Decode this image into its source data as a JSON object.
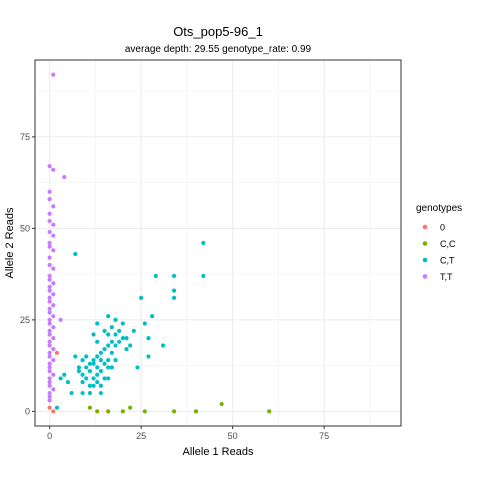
{
  "chart_data": {
    "type": "scatter",
    "title": "Ots_pop5-96_1",
    "subtitle": "average depth:  29.55  genotype_rate:  0.99",
    "xlabel": "Allele 1 Reads",
    "ylabel": "Allele 2 Reads",
    "xlim": [
      -4,
      96
    ],
    "ylim": [
      -4,
      96
    ],
    "xticks": [
      0,
      25,
      50,
      75
    ],
    "yticks": [
      0,
      25,
      50,
      75
    ],
    "grid": true,
    "legend_title": "genotypes",
    "legend_position": "right",
    "series": [
      {
        "name": "0",
        "color": "#F8766D",
        "points": [
          [
            0,
            1
          ],
          [
            1,
            0
          ],
          [
            2,
            16
          ]
        ]
      },
      {
        "name": "C,C",
        "color": "#7CAE00",
        "points": [
          [
            11,
            1
          ],
          [
            13,
            0
          ],
          [
            16,
            0
          ],
          [
            20,
            0
          ],
          [
            22,
            1
          ],
          [
            26,
            0
          ],
          [
            34,
            0
          ],
          [
            40,
            0
          ],
          [
            47,
            2
          ],
          [
            60,
            0
          ]
        ]
      },
      {
        "name": "C,T",
        "color": "#00BFC4",
        "points": [
          [
            2,
            1
          ],
          [
            3,
            9
          ],
          [
            4,
            10
          ],
          [
            5,
            8
          ],
          [
            6,
            5
          ],
          [
            7,
            43
          ],
          [
            7,
            15
          ],
          [
            8,
            12
          ],
          [
            8,
            11
          ],
          [
            9,
            14
          ],
          [
            9,
            10
          ],
          [
            9,
            8
          ],
          [
            9,
            5
          ],
          [
            10,
            15
          ],
          [
            10,
            12
          ],
          [
            10,
            9
          ],
          [
            11,
            13
          ],
          [
            11,
            11
          ],
          [
            11,
            7
          ],
          [
            11,
            5
          ],
          [
            12,
            21
          ],
          [
            12,
            14
          ],
          [
            12,
            13
          ],
          [
            12,
            9
          ],
          [
            12,
            7
          ],
          [
            13,
            24
          ],
          [
            13,
            19
          ],
          [
            13,
            15
          ],
          [
            13,
            12
          ],
          [
            13,
            10
          ],
          [
            13,
            8
          ],
          [
            14,
            16
          ],
          [
            14,
            14
          ],
          [
            14,
            11
          ],
          [
            14,
            7
          ],
          [
            14,
            5
          ],
          [
            15,
            22
          ],
          [
            15,
            17
          ],
          [
            15,
            13
          ],
          [
            15,
            9
          ],
          [
            16,
            26
          ],
          [
            16,
            21
          ],
          [
            16,
            18
          ],
          [
            16,
            14
          ],
          [
            16,
            12
          ],
          [
            16,
            9
          ],
          [
            17,
            23
          ],
          [
            17,
            19
          ],
          [
            17,
            16
          ],
          [
            17,
            12
          ],
          [
            18,
            25
          ],
          [
            18,
            21
          ],
          [
            18,
            18
          ],
          [
            18,
            14
          ],
          [
            19,
            22
          ],
          [
            19,
            19
          ],
          [
            20,
            24
          ],
          [
            20,
            20
          ],
          [
            21,
            20
          ],
          [
            21,
            17
          ],
          [
            22,
            18
          ],
          [
            23,
            22
          ],
          [
            24,
            12
          ],
          [
            25,
            31
          ],
          [
            26,
            24
          ],
          [
            27,
            15
          ],
          [
            27,
            20
          ],
          [
            28,
            26
          ],
          [
            29,
            37
          ],
          [
            31,
            18
          ],
          [
            34,
            37
          ],
          [
            34,
            31
          ],
          [
            34,
            33
          ],
          [
            42,
            46
          ],
          [
            42,
            37
          ]
        ]
      },
      {
        "name": "T,T",
        "color": "#C77CFF",
        "points": [
          [
            1,
            92
          ],
          [
            0,
            67
          ],
          [
            1,
            66
          ],
          [
            4,
            64
          ],
          [
            0,
            60
          ],
          [
            0,
            58
          ],
          [
            1,
            56
          ],
          [
            0,
            54
          ],
          [
            0,
            52
          ],
          [
            1,
            51
          ],
          [
            0,
            49
          ],
          [
            1,
            48
          ],
          [
            0,
            46
          ],
          [
            0,
            45
          ],
          [
            1,
            44
          ],
          [
            0,
            42
          ],
          [
            0,
            40
          ],
          [
            1,
            39
          ],
          [
            0,
            37
          ],
          [
            0,
            36
          ],
          [
            1,
            35
          ],
          [
            0,
            34
          ],
          [
            0,
            33
          ],
          [
            1,
            32
          ],
          [
            0,
            31
          ],
          [
            0,
            30
          ],
          [
            1,
            29
          ],
          [
            0,
            28
          ],
          [
            0,
            27
          ],
          [
            1,
            26
          ],
          [
            0,
            25
          ],
          [
            0,
            24
          ],
          [
            1,
            23
          ],
          [
            0,
            22
          ],
          [
            0,
            21
          ],
          [
            1,
            20
          ],
          [
            0,
            19
          ],
          [
            0,
            18
          ],
          [
            1,
            17
          ],
          [
            0,
            16
          ],
          [
            0,
            15
          ],
          [
            1,
            14
          ],
          [
            0,
            13
          ],
          [
            0,
            12
          ],
          [
            0,
            11
          ],
          [
            1,
            10
          ],
          [
            0,
            9
          ],
          [
            0,
            8
          ],
          [
            0,
            7
          ],
          [
            1,
            6
          ],
          [
            0,
            5
          ],
          [
            0,
            4
          ],
          [
            0,
            3
          ],
          [
            3,
            25
          ]
        ]
      }
    ]
  }
}
